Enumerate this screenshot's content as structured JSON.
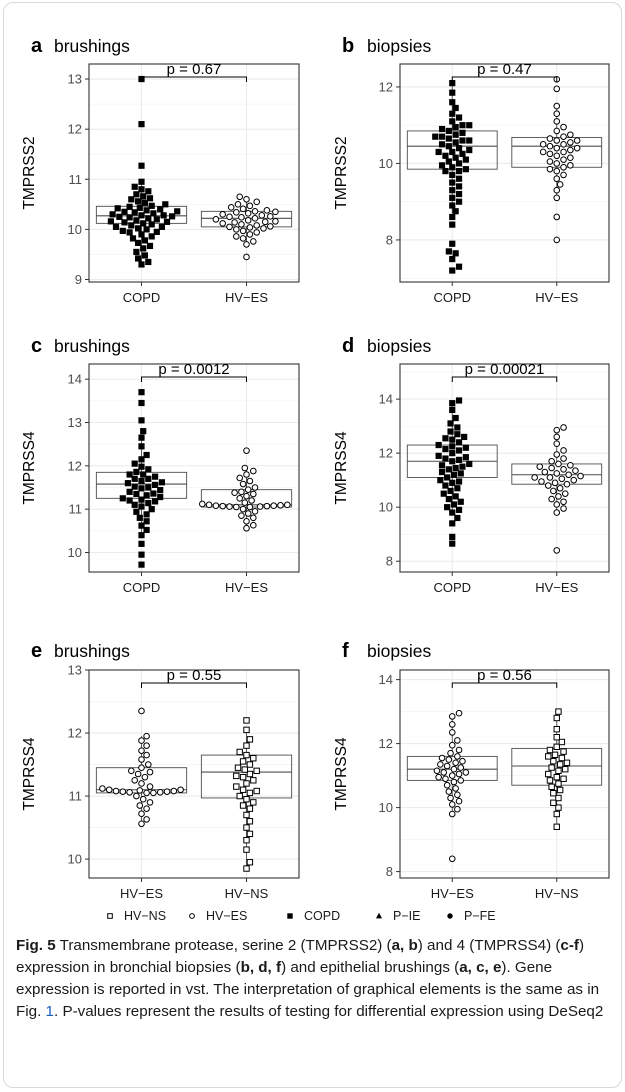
{
  "legend": {
    "items": [
      {
        "label": "HV−NS",
        "shape": "open-square"
      },
      {
        "label": "HV−ES",
        "shape": "open-circle"
      },
      {
        "label": "COPD",
        "shape": "filled-square"
      },
      {
        "label": "P−IE",
        "shape": "filled-triangle"
      },
      {
        "label": "P−FE",
        "shape": "filled-circle"
      }
    ]
  },
  "caption": {
    "fig_label": "Fig. 5",
    "p1": "  Transmembrane protease, serine 2 (TMPRSS2) (",
    "p2": ") and 4 (TMPRSS4) (",
    "p3": ") expression in bronchial biopsies (",
    "p4": ") and epithelial brushings (",
    "p5": "). Gene expression is reported in vst. The interpretation of graphical elements is the same as in Fig. ",
    "ref": "1",
    "p6": ". P-values represent the results of testing for differential expression using DeSeq2",
    "b_ab": "a, b",
    "b_cf": "c-f",
    "b_bdf": "b, d, f",
    "b_ace": "a, c, e"
  },
  "colors": {
    "box_stroke": "#4d4d4d",
    "grid": "#ebebeb",
    "border": "#333333",
    "point": "#000000"
  },
  "chart_data": [
    {
      "type": "scatter",
      "panel": "a",
      "title": "brushings",
      "ylabel": "TMPRSS2",
      "ylim": [
        8.95,
        13.3
      ],
      "yticks": [
        9,
        10,
        11,
        12,
        13
      ],
      "categories": [
        "COPD",
        "HV−ES"
      ],
      "p_value": "p = 0.67",
      "series": [
        {
          "group": "COPD",
          "marker": "filled-square",
          "box": {
            "q1": 10.12,
            "median": 10.27,
            "q3": 10.46,
            "whisker_low": 9.3,
            "whisker_high": 10.9
          },
          "values": [
            13.0,
            12.1,
            11.27,
            10.95,
            10.85,
            10.8,
            10.76,
            10.7,
            10.66,
            10.62,
            10.6,
            10.56,
            10.53,
            10.5,
            10.47,
            10.45,
            10.42,
            10.4,
            10.38,
            10.36,
            10.34,
            10.32,
            10.3,
            10.28,
            10.26,
            10.24,
            10.22,
            10.2,
            10.18,
            10.16,
            10.14,
            10.12,
            10.1,
            10.08,
            10.05,
            10.02,
            10.0,
            9.97,
            9.94,
            9.9,
            9.86,
            9.82,
            9.78,
            9.73,
            9.67,
            9.62,
            9.55,
            9.48,
            9.42,
            9.35,
            9.3,
            10.25,
            10.35,
            10.15,
            10.43,
            10.05,
            9.95,
            10.28
          ]
        },
        {
          "group": "HV−ES",
          "marker": "open-circle",
          "box": {
            "q1": 10.05,
            "median": 10.22,
            "q3": 10.36,
            "whisker_low": 9.7,
            "whisker_high": 10.65
          },
          "values": [
            10.65,
            10.6,
            10.55,
            10.5,
            10.47,
            10.44,
            10.41,
            10.38,
            10.36,
            10.34,
            10.32,
            10.3,
            10.28,
            10.26,
            10.24,
            10.22,
            10.2,
            10.18,
            10.16,
            10.14,
            10.12,
            10.1,
            10.08,
            10.06,
            10.04,
            10.02,
            10.0,
            9.97,
            9.94,
            9.9,
            9.86,
            9.82,
            9.76,
            9.7,
            9.45,
            10.25,
            10.15,
            10.35,
            10.05
          ]
        }
      ]
    },
    {
      "type": "scatter",
      "panel": "b",
      "title": "biopsies",
      "ylabel": "TMPRSS2",
      "ylim": [
        6.9,
        12.6
      ],
      "yticks": [
        8,
        10,
        12
      ],
      "categories": [
        "COPD",
        "HV−ES"
      ],
      "p_value": "p = 0.47",
      "series": [
        {
          "group": "COPD",
          "marker": "filled-square",
          "box": {
            "q1": 9.85,
            "median": 10.45,
            "q3": 10.85,
            "whisker_low": 8.7,
            "whisker_high": 12.1
          },
          "values": [
            12.1,
            11.85,
            11.6,
            11.45,
            11.3,
            11.2,
            11.1,
            11.0,
            10.95,
            10.9,
            10.85,
            10.8,
            10.75,
            10.7,
            10.65,
            10.6,
            10.55,
            10.5,
            10.45,
            10.4,
            10.35,
            10.3,
            10.25,
            10.2,
            10.15,
            10.1,
            10.05,
            10.0,
            9.95,
            9.9,
            9.85,
            9.8,
            9.7,
            9.6,
            9.5,
            9.4,
            9.3,
            9.2,
            9.1,
            9.0,
            8.9,
            8.75,
            8.6,
            8.4,
            7.9,
            7.7,
            7.65,
            7.5,
            7.3,
            7.2,
            10.6,
            10.7,
            10.3,
            11.0,
            9.8
          ]
        },
        {
          "group": "HV−ES",
          "marker": "open-circle",
          "box": {
            "q1": 9.9,
            "median": 10.45,
            "q3": 10.68,
            "whisker_low": 9.1,
            "whisker_high": 11.5
          },
          "values": [
            12.2,
            11.95,
            11.5,
            11.3,
            11.1,
            10.95,
            10.85,
            10.75,
            10.7,
            10.65,
            10.6,
            10.55,
            10.5,
            10.45,
            10.4,
            10.35,
            10.3,
            10.25,
            10.2,
            10.15,
            10.1,
            10.05,
            10.0,
            9.95,
            9.9,
            9.85,
            9.8,
            9.7,
            9.6,
            9.45,
            9.3,
            9.1,
            8.6,
            8.0,
            10.4,
            10.6,
            10.5,
            10.3
          ]
        }
      ]
    },
    {
      "type": "scatter",
      "panel": "c",
      "title": "brushings",
      "ylabel": "TMPRSS4",
      "ylim": [
        9.55,
        14.35
      ],
      "yticks": [
        10,
        11,
        12,
        13,
        14
      ],
      "categories": [
        "COPD",
        "HV−ES"
      ],
      "p_value": "p = 0.0012",
      "series": [
        {
          "group": "COPD",
          "marker": "filled-square",
          "box": {
            "q1": 11.25,
            "median": 11.58,
            "q3": 11.85,
            "whisker_low": 10.4,
            "whisker_high": 12.7
          },
          "values": [
            13.7,
            13.45,
            13.05,
            12.8,
            12.65,
            12.45,
            12.25,
            12.15,
            12.05,
            11.98,
            11.92,
            11.86,
            11.8,
            11.75,
            11.7,
            11.65,
            11.6,
            11.56,
            11.52,
            11.48,
            11.44,
            11.4,
            11.36,
            11.32,
            11.28,
            11.25,
            11.22,
            11.18,
            11.14,
            11.1,
            11.06,
            11.0,
            10.94,
            10.88,
            10.8,
            10.72,
            10.62,
            10.52,
            10.4,
            10.2,
            9.95,
            9.72,
            11.5,
            11.62,
            11.35,
            11.7,
            11.2,
            11.8
          ]
        },
        {
          "group": "HV−ES",
          "marker": "open-circle",
          "box": {
            "q1": 11.05,
            "median": 11.1,
            "q3": 11.45,
            "whisker_low": 10.55,
            "whisker_high": 11.95
          },
          "values": [
            12.35,
            11.95,
            11.88,
            11.8,
            11.72,
            11.65,
            11.58,
            11.5,
            11.45,
            11.4,
            11.35,
            11.3,
            11.25,
            11.2,
            11.15,
            11.12,
            11.1,
            11.08,
            11.07,
            11.06,
            11.05,
            11.1,
            11.09,
            11.08,
            11.07,
            11.06,
            11.05,
            11.0,
            10.95,
            10.9,
            10.85,
            10.8,
            10.72,
            10.63,
            10.56,
            11.38
          ]
        }
      ]
    },
    {
      "type": "scatter",
      "panel": "d",
      "title": "biopsies",
      "ylabel": "TMPRSS4",
      "ylim": [
        7.6,
        15.3
      ],
      "yticks": [
        8,
        10,
        12,
        14
      ],
      "categories": [
        "COPD",
        "HV−ES"
      ],
      "p_value": "p = 0.00021",
      "series": [
        {
          "group": "COPD",
          "marker": "filled-square",
          "box": {
            "q1": 11.1,
            "median": 11.7,
            "q3": 12.3,
            "whisker_low": 9.8,
            "whisker_high": 13.95
          },
          "values": [
            13.95,
            13.85,
            13.6,
            13.3,
            13.1,
            12.95,
            12.8,
            12.7,
            12.6,
            12.5,
            12.4,
            12.3,
            12.2,
            12.1,
            12.0,
            11.9,
            11.8,
            11.7,
            11.6,
            11.5,
            11.4,
            11.3,
            11.2,
            11.1,
            11.0,
            10.9,
            10.8,
            10.7,
            10.6,
            10.5,
            10.4,
            10.3,
            10.2,
            10.1,
            10.0,
            9.9,
            9.8,
            9.6,
            9.4,
            8.9,
            8.65,
            11.75,
            11.85,
            11.55,
            12.15,
            11.25,
            11.45,
            12.55,
            10.95,
            12.25
          ]
        },
        {
          "group": "HV−ES",
          "marker": "open-circle",
          "box": {
            "q1": 10.85,
            "median": 11.2,
            "q3": 11.6,
            "whisker_low": 9.8,
            "whisker_high": 12.9
          },
          "values": [
            12.95,
            12.85,
            12.6,
            12.35,
            12.1,
            11.95,
            11.8,
            11.7,
            11.6,
            11.5,
            11.4,
            11.3,
            11.25,
            11.2,
            11.15,
            11.1,
            11.05,
            11.0,
            10.95,
            10.9,
            10.85,
            10.8,
            10.7,
            10.6,
            10.5,
            10.4,
            10.3,
            10.2,
            10.1,
            9.95,
            9.8,
            8.4,
            11.35,
            11.45,
            11.55,
            11.1
          ]
        }
      ]
    },
    {
      "type": "scatter",
      "panel": "e",
      "title": "brushings",
      "ylabel": "TMPRSS4",
      "ylim": [
        9.7,
        13.0
      ],
      "yticks": [
        10,
        11,
        12,
        13
      ],
      "categories": [
        "HV−ES",
        "HV−NS"
      ],
      "p_value": "p = 0.55",
      "series": [
        {
          "group": "HV−ES",
          "marker": "open-circle",
          "box": {
            "q1": 11.05,
            "median": 11.1,
            "q3": 11.45,
            "whisker_low": 10.55,
            "whisker_high": 11.95
          },
          "values": [
            12.35,
            11.95,
            11.88,
            11.8,
            11.72,
            11.65,
            11.58,
            11.5,
            11.45,
            11.4,
            11.35,
            11.3,
            11.25,
            11.2,
            11.15,
            11.12,
            11.1,
            11.08,
            11.07,
            11.06,
            11.05,
            11.1,
            11.09,
            11.08,
            11.07,
            11.06,
            11.05,
            11.0,
            10.95,
            10.9,
            10.85,
            10.8,
            10.72,
            10.63,
            10.56,
            11.38
          ]
        },
        {
          "group": "HV−NS",
          "marker": "open-square",
          "box": {
            "q1": 10.97,
            "median": 11.38,
            "q3": 11.65,
            "whisker_low": 9.9,
            "whisker_high": 12.1
          },
          "values": [
            12.2,
            12.05,
            11.9,
            11.8,
            11.7,
            11.65,
            11.6,
            11.55,
            11.5,
            11.45,
            11.4,
            11.35,
            11.3,
            11.25,
            11.2,
            11.15,
            11.1,
            11.05,
            11.0,
            10.95,
            10.9,
            10.85,
            10.8,
            10.7,
            10.6,
            10.5,
            10.4,
            10.3,
            10.15,
            9.95,
            9.85,
            11.42,
            11.32,
            11.08
          ]
        }
      ]
    },
    {
      "type": "scatter",
      "panel": "f",
      "title": "biopsies",
      "ylabel": "TMPRSS4",
      "ylim": [
        7.8,
        14.3
      ],
      "yticks": [
        8,
        10,
        12,
        14
      ],
      "categories": [
        "HV−ES",
        "HV−NS"
      ],
      "p_value": "p = 0.56",
      "series": [
        {
          "group": "HV−ES",
          "marker": "open-circle",
          "box": {
            "q1": 10.85,
            "median": 11.2,
            "q3": 11.6,
            "whisker_low": 9.8,
            "whisker_high": 12.9
          },
          "values": [
            12.95,
            12.85,
            12.6,
            12.35,
            12.1,
            11.95,
            11.8,
            11.7,
            11.6,
            11.5,
            11.4,
            11.3,
            11.25,
            11.2,
            11.15,
            11.1,
            11.05,
            11.0,
            10.95,
            10.9,
            10.85,
            10.8,
            10.7,
            10.6,
            10.5,
            10.4,
            10.3,
            10.2,
            10.1,
            9.95,
            9.8,
            8.4,
            11.35,
            11.45,
            11.55,
            11.1
          ]
        },
        {
          "group": "HV−NS",
          "marker": "open-square",
          "box": {
            "q1": 10.7,
            "median": 11.3,
            "q3": 11.85,
            "whisker_low": 9.4,
            "whisker_high": 13.0
          },
          "values": [
            13.0,
            12.8,
            12.45,
            12.2,
            12.05,
            11.9,
            11.75,
            11.65,
            11.55,
            11.45,
            11.35,
            11.25,
            11.15,
            11.05,
            10.95,
            10.85,
            10.75,
            10.65,
            10.55,
            10.45,
            10.3,
            10.15,
            10.0,
            9.8,
            9.4,
            11.4,
            11.2,
            11.6,
            10.9,
            11.8
          ]
        }
      ]
    }
  ]
}
